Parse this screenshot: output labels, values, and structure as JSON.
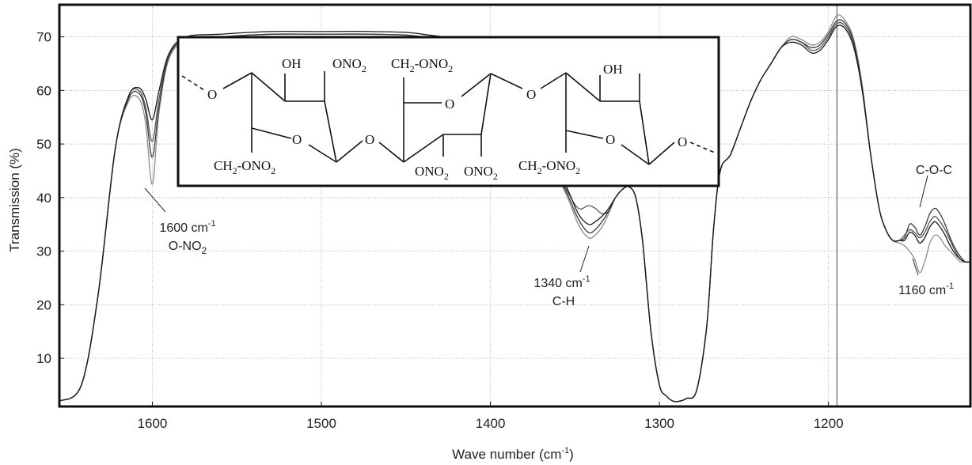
{
  "chart_data": {
    "type": "line",
    "xlabel": "Wave number (cm",
    "xlabel_sup": "-1",
    "xlabel_close": ")",
    "ylabel": "Transmission (%)",
    "x_reversed": true,
    "xlim": [
      1655,
      1116
    ],
    "ylim": [
      1,
      76
    ],
    "grid": true,
    "x_ticks": [
      1600,
      1500,
      1400,
      1300,
      1200
    ],
    "y_ticks": [
      10,
      20,
      30,
      40,
      50,
      60,
      70
    ],
    "x_tick_labels": [
      "1600",
      "1500",
      "1400",
      "1300",
      "1200"
    ],
    "y_tick_labels": [
      "10",
      "20",
      "30",
      "40",
      "50",
      "60",
      "70"
    ],
    "marker_line_x": 1195,
    "series": [
      {
        "color": "#1a1a1a",
        "x": [
          1655,
          1642,
          1632,
          1622,
          1614,
          1608,
          1604,
          1600,
          1596,
          1590,
          1580,
          1560,
          1530,
          1500,
          1470,
          1440,
          1410,
          1385,
          1365,
          1355,
          1348,
          1342,
          1338,
          1334,
          1330,
          1326,
          1322,
          1318,
          1314,
          1310,
          1305,
          1300,
          1296,
          1292,
          1288,
          1284,
          1278,
          1272,
          1268,
          1264,
          1258,
          1252,
          1246,
          1240,
          1234,
          1228,
          1222,
          1216,
          1210,
          1205,
          1200,
          1195,
          1190,
          1185,
          1180,
          1175,
          1170,
          1166,
          1162,
          1158,
          1155,
          1152,
          1149,
          1146,
          1143,
          1140,
          1137,
          1134,
          1131,
          1128,
          1125,
          1122,
          1119,
          1116
        ],
        "y": [
          2,
          5,
          22,
          49,
          59,
          60.5,
          58.5,
          54.5,
          60,
          67,
          70,
          70.5,
          71,
          71,
          71,
          70.5,
          68,
          58,
          48,
          42,
          37,
          35,
          35.5,
          36.5,
          38,
          40,
          41.5,
          42,
          40,
          32,
          15,
          5,
          3,
          2,
          2,
          2.5,
          4,
          16,
          34,
          45,
          48,
          53,
          58,
          62,
          65,
          68,
          69,
          68.5,
          67,
          67.5,
          69.5,
          72,
          71.5,
          68,
          60,
          48,
          38,
          34,
          32,
          32,
          32,
          33.5,
          33,
          31.5,
          32.5,
          34.5,
          35.5,
          34.5,
          33,
          31,
          29.5,
          28.5,
          28,
          28
        ]
      },
      {
        "color": "#3a3a3a",
        "x": [
          1655,
          1642,
          1632,
          1622,
          1614,
          1608,
          1604,
          1600,
          1596,
          1590,
          1580,
          1560,
          1530,
          1500,
          1470,
          1440,
          1410,
          1385,
          1365,
          1355,
          1348,
          1342,
          1338,
          1334,
          1330,
          1326,
          1322,
          1318,
          1314,
          1310,
          1305,
          1300,
          1296,
          1292,
          1288,
          1284,
          1278,
          1272,
          1268,
          1264,
          1258,
          1252,
          1246,
          1240,
          1234,
          1228,
          1222,
          1216,
          1210,
          1205,
          1200,
          1195,
          1190,
          1185,
          1180,
          1175,
          1170,
          1166,
          1162,
          1158,
          1155,
          1152,
          1149,
          1146,
          1143,
          1140,
          1137,
          1134,
          1131,
          1128,
          1125,
          1122,
          1119,
          1116
        ],
        "y": [
          2,
          5,
          22,
          49,
          58.5,
          59.5,
          56,
          47.5,
          57,
          66.5,
          69.5,
          70,
          70.5,
          70.5,
          70.5,
          70,
          67.5,
          57,
          47,
          41,
          36,
          33.5,
          34,
          35.5,
          37.5,
          40,
          41.5,
          42,
          40,
          32,
          15,
          5,
          3,
          2,
          2,
          2.5,
          4,
          16,
          34,
          45,
          48,
          53,
          58,
          62,
          65,
          68,
          69.5,
          69,
          68,
          68.5,
          70.5,
          73,
          72.5,
          69,
          60.5,
          48,
          38,
          34,
          32,
          32,
          32.5,
          35,
          34.5,
          33,
          34.5,
          37,
          38,
          37,
          35,
          32.5,
          30.5,
          29,
          28,
          28
        ]
      },
      {
        "color": "#555555",
        "x": [
          1655,
          1642,
          1632,
          1622,
          1614,
          1608,
          1604,
          1600,
          1596,
          1590,
          1580,
          1560,
          1530,
          1500,
          1470,
          1440,
          1410,
          1385,
          1365,
          1355,
          1348,
          1342,
          1338,
          1334,
          1330,
          1326,
          1322,
          1318,
          1314,
          1310,
          1305,
          1300,
          1296,
          1292,
          1288,
          1284,
          1278,
          1272,
          1268,
          1264,
          1258,
          1252,
          1246,
          1240,
          1234,
          1228,
          1222,
          1216,
          1210,
          1205,
          1200,
          1195,
          1190,
          1185,
          1180,
          1175,
          1170,
          1166,
          1162,
          1158,
          1155,
          1152,
          1149,
          1146,
          1143,
          1140,
          1137,
          1134,
          1131,
          1128,
          1125,
          1122,
          1119,
          1116
        ],
        "y": [
          2,
          5,
          22,
          49,
          59,
          60,
          57,
          50.5,
          58.5,
          66.5,
          69.5,
          70,
          70.5,
          70.5,
          70.5,
          70,
          67.5,
          57.5,
          47.5,
          41.5,
          38,
          38.5,
          38,
          37,
          37.5,
          40,
          41.5,
          42,
          40,
          32,
          15,
          5,
          3,
          2,
          2,
          2.5,
          4,
          16,
          34,
          45,
          48,
          53,
          58,
          62,
          65,
          68,
          69.5,
          69,
          67.5,
          68,
          70,
          72.5,
          72,
          68.5,
          60,
          48,
          38,
          34,
          32,
          32,
          33,
          34,
          33.5,
          32.5,
          33.5,
          35.5,
          36.5,
          35.5,
          34,
          32,
          30,
          28.5,
          28,
          28
        ]
      },
      {
        "color": "#8c8c8c",
        "x": [
          1655,
          1642,
          1632,
          1622,
          1614,
          1608,
          1604,
          1600,
          1596,
          1590,
          1580,
          1560,
          1530,
          1500,
          1470,
          1440,
          1410,
          1385,
          1365,
          1355,
          1348,
          1342,
          1338,
          1334,
          1330,
          1326,
          1322,
          1318,
          1314,
          1310,
          1305,
          1300,
          1296,
          1292,
          1288,
          1284,
          1278,
          1272,
          1268,
          1264,
          1258,
          1252,
          1246,
          1240,
          1234,
          1228,
          1222,
          1216,
          1210,
          1205,
          1200,
          1195,
          1190,
          1185,
          1180,
          1175,
          1170,
          1166,
          1162,
          1158,
          1155,
          1152,
          1149,
          1146,
          1143,
          1140,
          1137,
          1134,
          1131,
          1128,
          1125,
          1122,
          1119,
          1116
        ],
        "y": [
          2,
          5,
          22,
          49,
          58,
          58.5,
          54,
          42.5,
          56,
          66,
          69,
          69.5,
          70,
          70,
          70,
          69.5,
          67,
          56.5,
          46.5,
          40.5,
          35,
          32.5,
          33,
          34.5,
          37,
          40,
          41.5,
          42,
          40,
          32,
          15,
          5,
          3,
          2,
          2,
          2.5,
          4,
          16,
          34,
          45,
          48,
          53,
          58,
          62,
          65,
          68,
          70,
          69.5,
          68.5,
          69,
          71,
          74,
          73,
          69.5,
          61,
          48,
          38,
          34,
          32,
          31.5,
          31,
          30,
          28.5,
          26,
          28,
          31.5,
          33,
          32.5,
          31,
          30,
          29,
          28,
          28,
          28
        ]
      }
    ],
    "annotations": [
      {
        "line1": "1600 cm",
        "sup": "-1",
        "line2": "O-NO",
        "line2_sub": "2"
      },
      {
        "line1": "1340 cm",
        "sup": "-1",
        "line2": "C-H"
      },
      {
        "line1": "1160 cm",
        "sup": "-1"
      },
      {
        "line1": "C-O-C"
      }
    ],
    "inset": {
      "labels": {
        "o1": "O",
        "oh1": "OH",
        "ono2_1": "ONO",
        "ono2_1_sub": "2",
        "ring_o1": "O",
        "ch2_1": "CH",
        "ch2_1_sub": "2",
        "ch2_1_rest": "-ONO",
        "ch2_1_rest_sub": "2",
        "link_o1": "O",
        "ch2_2": "CH",
        "ch2_2_sub": "2",
        "ch2_2_rest": "-ONO",
        "ch2_2_rest_sub": "2",
        "ring_o2": "O",
        "ono2_2": "ONO",
        "ono2_2_sub": "2",
        "ono2_3": "ONO",
        "ono2_3_sub": "2",
        "link_o2": "O",
        "oh2": "OH",
        "ring_o3": "O",
        "ch2_3": "CH",
        "ch2_3_sub": "2",
        "ch2_3_rest": "-ONO",
        "ch2_3_rest_sub": "2",
        "o_end": "O"
      }
    }
  }
}
